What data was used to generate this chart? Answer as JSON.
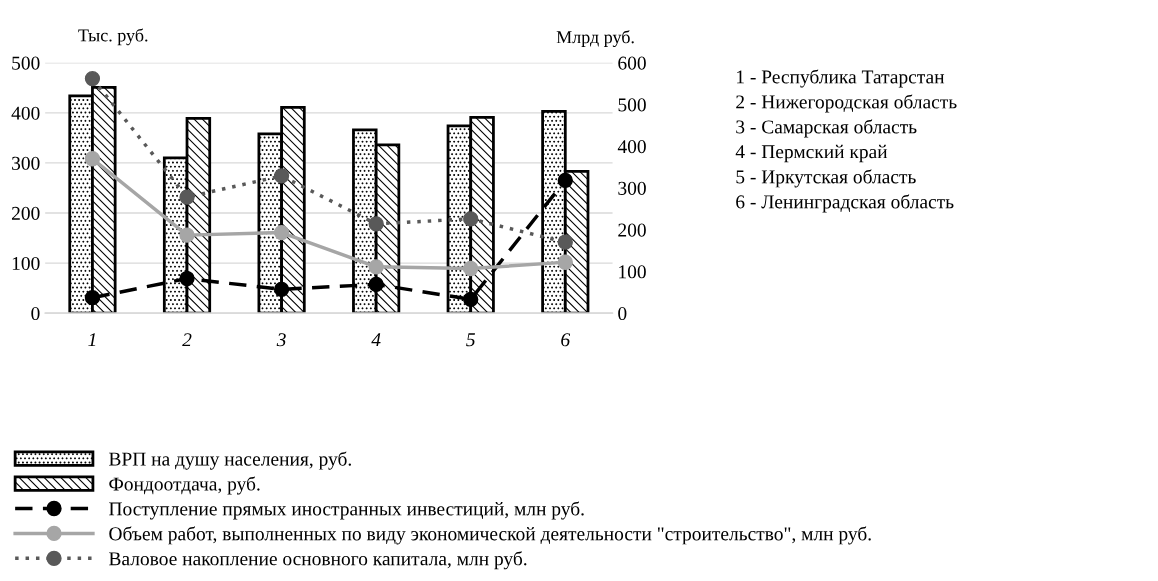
{
  "chart_data": {
    "type": "bar",
    "categories": [
      "1",
      "2",
      "3",
      "4",
      "5",
      "6"
    ],
    "ylabel": "Тыс. руб.",
    "y2label": "Млрд руб.",
    "ylim": [
      0,
      500
    ],
    "yticks": [
      0,
      100,
      200,
      300,
      400,
      500
    ],
    "y2lim": [
      0,
      600
    ],
    "y2ticks": [
      0,
      100,
      200,
      300,
      400,
      500,
      600
    ],
    "grid": "y",
    "legend": "bottom",
    "marker": "circle",
    "series": [
      {
        "name": "ВРП на душу населения, руб.",
        "color": "#000000",
        "values": [
          434,
          310,
          358,
          366,
          374,
          403
        ]
      },
      {
        "name": "Фондоотдача, руб.",
        "color": "#000000",
        "values": [
          451,
          389,
          411,
          336,
          391,
          283
        ]
      },
      {
        "name": "Поступление прямых иностранных инвестиций, млн руб.",
        "type": "line",
        "axis": "y2",
        "line_style": "dashed",
        "color": "#000000",
        "values": [
          37,
          83,
          57,
          69,
          33,
          318
        ]
      },
      {
        "name": "Объем работ, выполненных по виду экономической деятельности \"строительство\", млн руб.",
        "type": "line",
        "axis": "y2",
        "line_style": "solid",
        "color": "#a6a6a6",
        "values": [
          370,
          187,
          193,
          111,
          107,
          122
        ]
      },
      {
        "name": "Валовое накопление основного капитала, млн руб.",
        "type": "line",
        "axis": "y2",
        "line_style": "dotted",
        "color": "#595959",
        "values": [
          562,
          278,
          329,
          214,
          226,
          170
        ]
      }
    ],
    "annotations": [
      "1 - Республика Татарстан",
      "2 - Нижегородская область",
      "3 - Самарская область",
      "4 - Пермский край",
      "5 - Иркутская область",
      "6 - Ленинградская область"
    ]
  }
}
